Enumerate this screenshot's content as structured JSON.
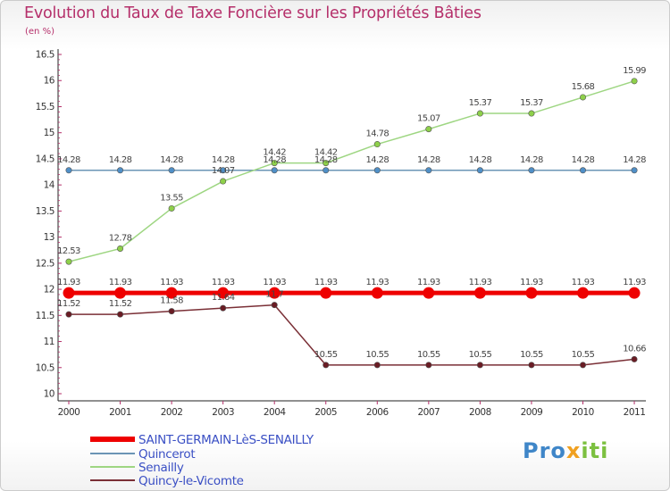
{
  "header": {
    "title": "Evolution du Taux de Taxe Foncière sur les Propriétés Bâties",
    "unit": "(en %)"
  },
  "logo": {
    "part1": "Pro",
    "part2": "x",
    "part3": "iti"
  },
  "colors": {
    "title": "#b52f6a",
    "legend_text": "#3a4fc4",
    "saint_germain": "#ee0000",
    "quincerot": "#6b95b5",
    "senailly": "#9ed682",
    "quincy": "#7a2f36"
  },
  "chart_data": {
    "type": "line",
    "title": "Evolution du Taux de Taxe Foncière sur les Propriétés Bâties",
    "ylabel": "(en %)",
    "xlabel": "",
    "x": [
      "2000",
      "2001",
      "2002",
      "2003",
      "2004",
      "2005",
      "2006",
      "2007",
      "2008",
      "2009",
      "2010",
      "2011"
    ],
    "yticks": [
      "10",
      "10.5",
      "11",
      "11.5",
      "12",
      "12.5",
      "13",
      "13.5",
      "14",
      "14.5",
      "15",
      "15.5",
      "16",
      "16.5"
    ],
    "ylim": [
      10,
      16.5
    ],
    "grid": false,
    "legend_position": "bottom-left",
    "series": [
      {
        "name": "SAINT-GERMAIN-LèS-SENAILLY",
        "color": "#ee0000",
        "emphasis": true,
        "values": [
          11.93,
          11.93,
          11.93,
          11.93,
          11.93,
          11.93,
          11.93,
          11.93,
          11.93,
          11.93,
          11.93,
          11.93
        ],
        "labels": [
          "11.93",
          "11.93",
          "11.93",
          "11.93",
          "11.93",
          "11.93",
          "11.93",
          "11.93",
          "11.93",
          "11.93",
          "11.93",
          "11.93"
        ]
      },
      {
        "name": "Quincerot",
        "color": "#6b95b5",
        "marker_fill": "#4f8fc7",
        "values": [
          14.28,
          14.28,
          14.28,
          14.28,
          14.28,
          14.28,
          14.28,
          14.28,
          14.28,
          14.28,
          14.28,
          14.28
        ],
        "labels": [
          "14.28",
          "14.28",
          "14.28",
          "14.28",
          "14.28",
          "14.28",
          "14.28",
          "14.28",
          "14.28",
          "14.28",
          "14.28",
          "14.28"
        ]
      },
      {
        "name": "Senailly",
        "color": "#9ed682",
        "marker_fill": "#8ed04a",
        "values": [
          12.53,
          12.78,
          13.55,
          14.07,
          14.42,
          14.42,
          14.78,
          15.07,
          15.37,
          15.37,
          15.68,
          15.99
        ],
        "labels": [
          "12.53",
          "12.78",
          "13.55",
          "14.07",
          "14.42",
          "14.42",
          "14.78",
          "15.07",
          "15.37",
          "15.37",
          "15.68",
          "15.99"
        ]
      },
      {
        "name": "Quincy-le-Vicomte",
        "color": "#7a2f36",
        "marker_fill": "#6a1c24",
        "values": [
          11.52,
          11.52,
          11.58,
          11.64,
          11.7,
          10.55,
          10.55,
          10.55,
          10.55,
          10.55,
          10.55,
          10.66
        ],
        "labels": [
          "11.52",
          "11.52",
          "11.58",
          "11.64",
          "11.7",
          "10.55",
          "10.55",
          "10.55",
          "10.55",
          "10.55",
          "10.55",
          "10.66"
        ]
      }
    ]
  }
}
